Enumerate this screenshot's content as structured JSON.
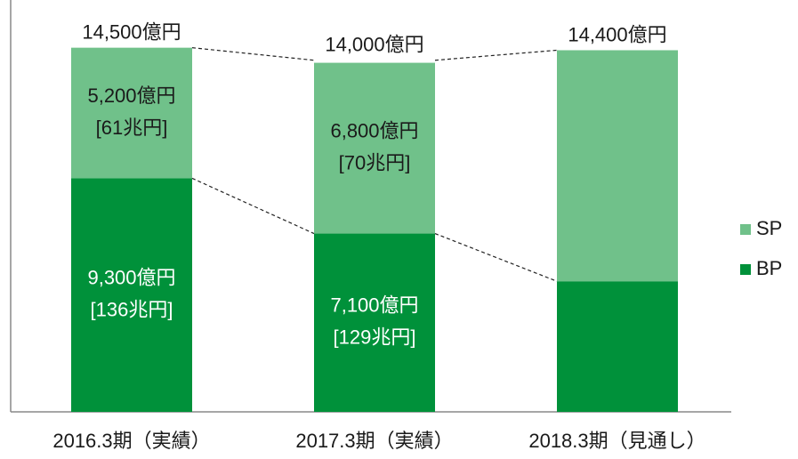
{
  "chart_data": {
    "type": "stacked_bar",
    "categories": [
      "2016.3期（実績）",
      "2017.3期（実績）",
      "2018.3期（見通し）"
    ],
    "series": [
      {
        "name": "BP",
        "color": "#00913a",
        "values": [
          9300,
          7100,
          5200
        ],
        "value_labels": [
          "9,300億円",
          "7,100億円",
          null
        ],
        "notes": [
          "[136兆円]",
          "[129兆円]",
          null
        ]
      },
      {
        "name": "SP",
        "color": "#70c18a",
        "values": [
          5200,
          6800,
          9200
        ],
        "value_labels": [
          "5,200億円",
          "6,800億円",
          null
        ],
        "notes": [
          "[61兆円]",
          "[70兆円]",
          null
        ]
      }
    ],
    "totals": [
      14500,
      14000,
      14400
    ],
    "total_labels": [
      "14,500億円",
      "14,000億円",
      "14,400億円"
    ],
    "ylim": [
      0,
      16400
    ],
    "legend": "right"
  }
}
